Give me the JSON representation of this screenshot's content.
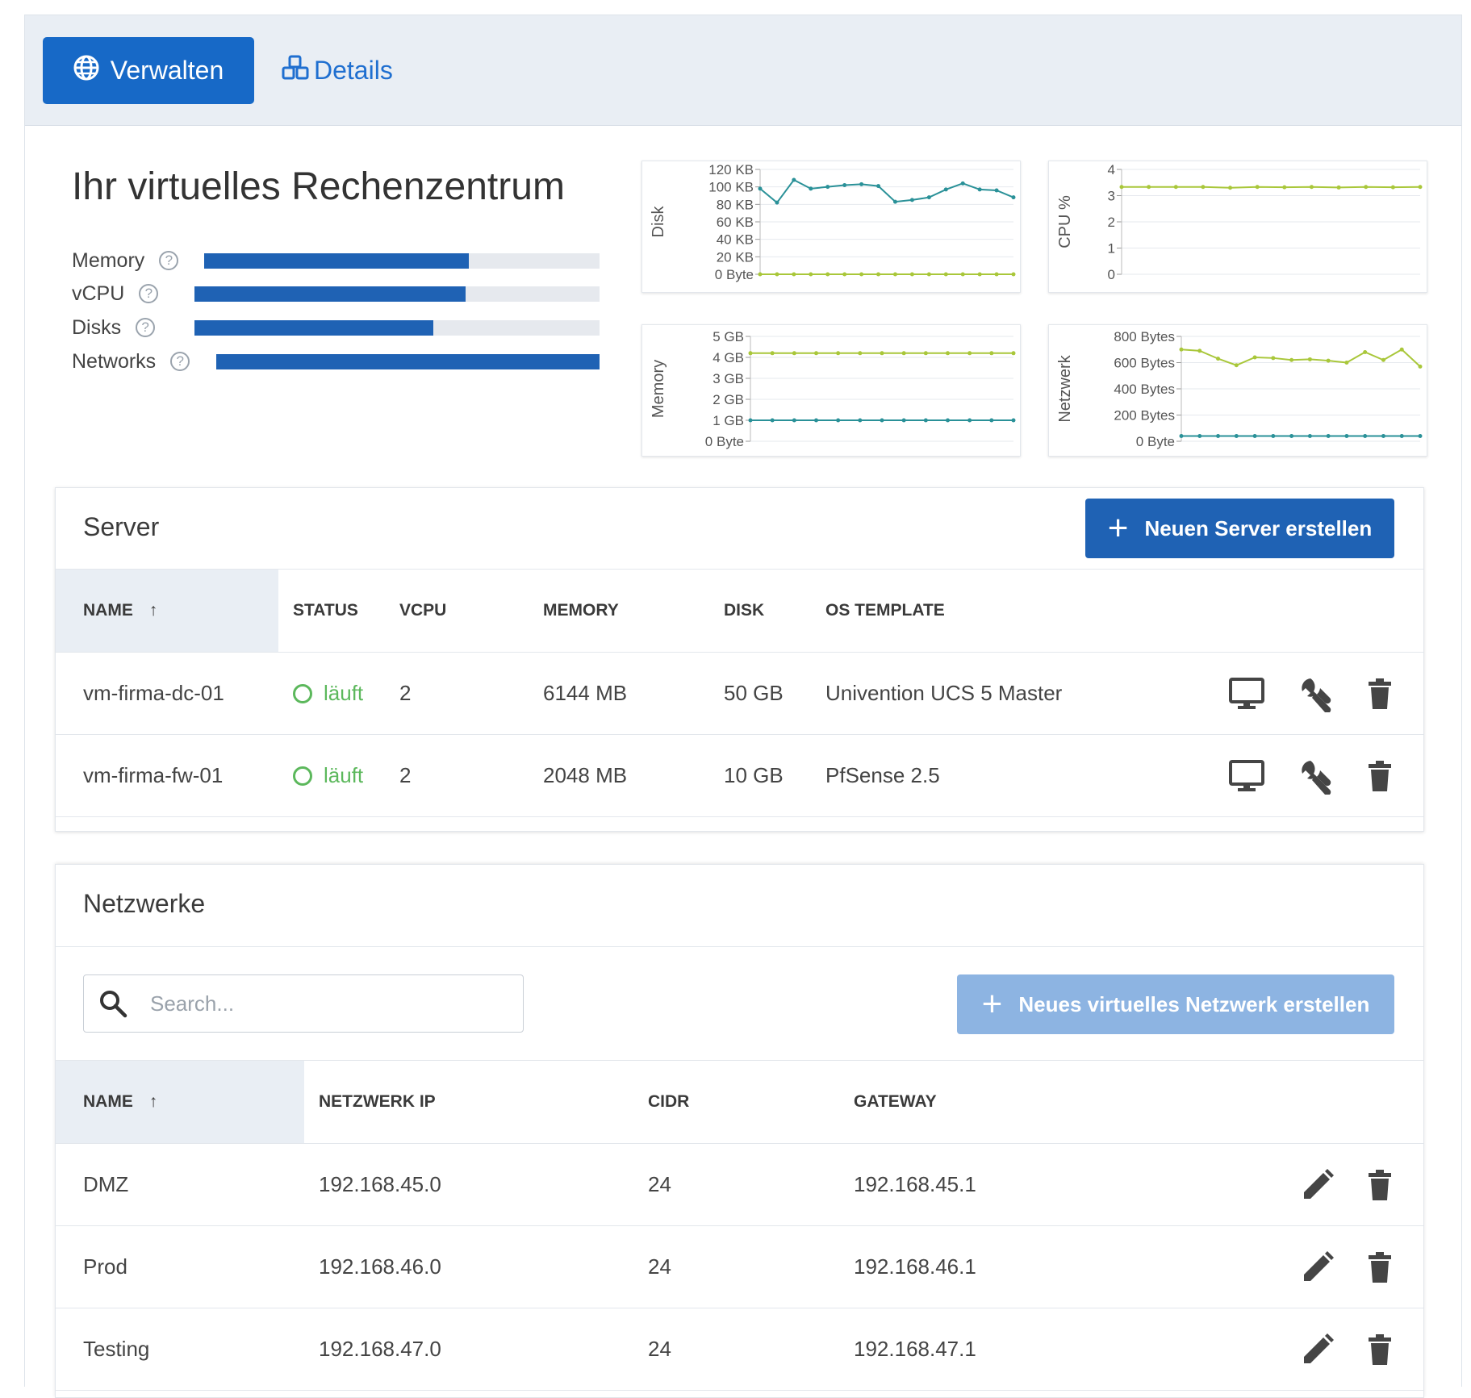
{
  "tabs": {
    "manage_label": "Verwalten",
    "details_label": "Details"
  },
  "datacenter": {
    "title": "Ihr virtuelles Rechenzentrum",
    "resources": [
      {
        "label": "Memory",
        "fill": 0.67
      },
      {
        "label": "vCPU",
        "fill": 0.67
      },
      {
        "label": "Disks",
        "fill": 0.59
      },
      {
        "label": "Networks",
        "fill": 1.0
      }
    ]
  },
  "charts": {
    "disk": {
      "ylabel": "Disk",
      "ticks": [
        "120 KB",
        "100 KB",
        "80 KB",
        "60 KB",
        "40 KB",
        "20 KB",
        "0 Byte"
      ],
      "ymax": 120,
      "series": [
        {
          "color": "#2a9198",
          "values": [
            98,
            82,
            108,
            98,
            100,
            102,
            103,
            101,
            83,
            85,
            88,
            97,
            104,
            97,
            96,
            88
          ]
        },
        {
          "color": "#a9c73a",
          "values": [
            0,
            0,
            0,
            0,
            0,
            0,
            0,
            0,
            0,
            0,
            0,
            0,
            0,
            0,
            0,
            0
          ]
        }
      ]
    },
    "cpu": {
      "ylabel": "CPU %",
      "ticks": [
        "4",
        "3",
        "2",
        "1",
        "0"
      ],
      "ymax": 4,
      "series": [
        {
          "color": "#a9c73a",
          "values": [
            3.33,
            3.33,
            3.33,
            3.33,
            3.3,
            3.33,
            3.32,
            3.33,
            3.31,
            3.33,
            3.32,
            3.33
          ]
        }
      ]
    },
    "memory": {
      "ylabel": "Memory",
      "ticks": [
        "5 GB",
        "4 GB",
        "3 GB",
        "2 GB",
        "1 GB",
        "0 Byte"
      ],
      "ymax": 5,
      "series": [
        {
          "color": "#a9c73a",
          "values": [
            4.2,
            4.2,
            4.2,
            4.2,
            4.2,
            4.2,
            4.2,
            4.2,
            4.2,
            4.2,
            4.2,
            4.2,
            4.2
          ]
        },
        {
          "color": "#2a9198",
          "values": [
            1.0,
            1.0,
            1.0,
            1.0,
            1.0,
            1.0,
            1.0,
            1.0,
            1.0,
            1.0,
            1.0,
            1.0,
            1.0
          ]
        }
      ]
    },
    "network": {
      "ylabel": "Netzwerk",
      "ticks": [
        "800 Bytes",
        "600 Bytes",
        "400 Bytes",
        "200 Bytes",
        "0 Byte"
      ],
      "ymax": 800,
      "series": [
        {
          "color": "#a9c73a",
          "values": [
            700,
            690,
            630,
            580,
            640,
            635,
            620,
            625,
            615,
            600,
            680,
            620,
            700,
            570
          ]
        },
        {
          "color": "#2a9198",
          "values": [
            40,
            40,
            40,
            40,
            40,
            40,
            40,
            40,
            40,
            40,
            40,
            40,
            40,
            40
          ]
        }
      ]
    }
  },
  "server": {
    "title": "Server",
    "create_label": "Neuen Server erstellen",
    "columns": {
      "name": "NAME",
      "status": "STATUS",
      "vcpu": "VCPU",
      "memory": "MEMORY",
      "disk": "DISK",
      "os": "OS TEMPLATE"
    },
    "rows": [
      {
        "name": "vm-firma-dc-01",
        "status": "läuft",
        "vcpu": "2",
        "memory": "6144 MB",
        "disk": "50 GB",
        "os": "Univention UCS 5 Master"
      },
      {
        "name": "vm-firma-fw-01",
        "status": "läuft",
        "vcpu": "2",
        "memory": "2048 MB",
        "disk": "10 GB",
        "os": "PfSense 2.5"
      }
    ]
  },
  "networks": {
    "title": "Netzwerke",
    "search_placeholder": "Search...",
    "create_label": "Neues virtuelles Netzwerk erstellen",
    "columns": {
      "name": "NAME",
      "ip": "NETZWERK IP",
      "cidr": "CIDR",
      "gateway": "GATEWAY"
    },
    "rows": [
      {
        "name": "DMZ",
        "ip": "192.168.45.0",
        "cidr": "24",
        "gateway": "192.168.45.1"
      },
      {
        "name": "Prod",
        "ip": "192.168.46.0",
        "cidr": "24",
        "gateway": "192.168.46.1"
      },
      {
        "name": "Testing",
        "ip": "192.168.47.0",
        "cidr": "24",
        "gateway": "192.168.47.1"
      }
    ]
  },
  "icons": {
    "manage": "globe-icon",
    "details": "cubes-icon",
    "help": "question-circle-icon",
    "console": "monitor-icon",
    "settings": "wrench-icon",
    "delete": "trash-icon",
    "edit": "pencil-icon",
    "search": "search-icon",
    "sort": "arrow-up-icon"
  },
  "colors": {
    "primary": "#1f62b4",
    "status_running": "#5cb85c",
    "series_teal": "#2a9198",
    "series_green": "#a9c73a"
  }
}
